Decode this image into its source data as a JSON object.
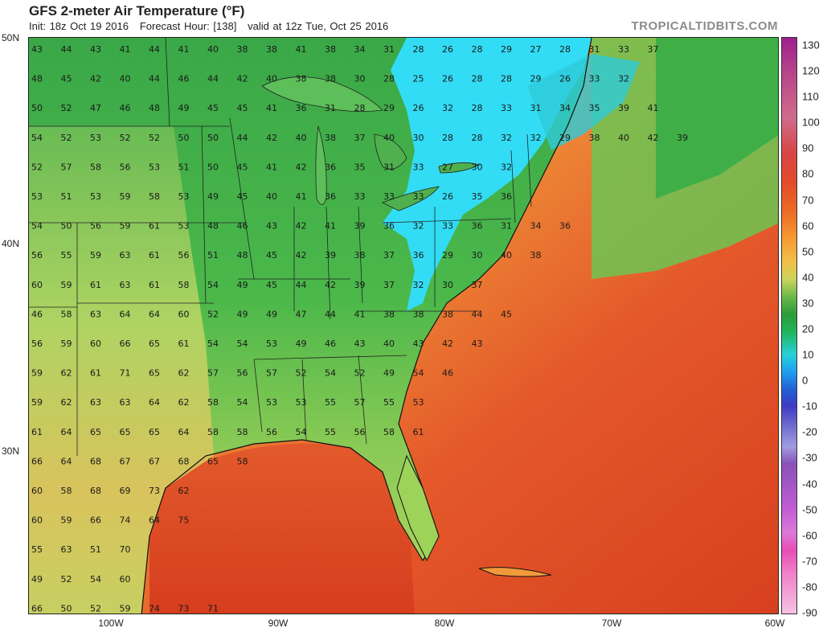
{
  "header": {
    "title": "GFS 2-meter Air Temperature (°F)",
    "init": "Init: 18z Oct 19 2016",
    "forecast_hour": "Forecast Hour: [138]",
    "valid": "valid at 12z Tue, Oct 25 2016",
    "brand": "TROPICALTIDBITS.COM"
  },
  "axes": {
    "lat_labels": [
      "50N",
      "40N",
      "30N"
    ],
    "lon_labels": [
      "100W",
      "90W",
      "80W",
      "70W",
      "60W"
    ]
  },
  "colorbar": {
    "labels": [
      "130",
      "120",
      "110",
      "100",
      "90",
      "80",
      "70",
      "60",
      "50",
      "40",
      "30",
      "20",
      "10",
      "0",
      "-10",
      "-20",
      "-30",
      "-40",
      "-50",
      "-60",
      "-70",
      "-80",
      "-90"
    ]
  },
  "colors": {
    "ocean_warm": "#d9431f",
    "ocean_mid": "#f0953a",
    "land_green": "#3fae46",
    "land_light": "#a8d35a",
    "cold_cyan": "#33dcf5"
  },
  "station_values": [
    [
      "43",
      "44",
      "43",
      "41",
      "44",
      "41",
      "40",
      "38",
      "38",
      "41",
      "38",
      "34",
      "31",
      "28",
      "26",
      "28",
      "29",
      "27",
      "28",
      "31",
      "33",
      "37"
    ],
    [
      "48",
      "45",
      "42",
      "40",
      "44",
      "46",
      "44",
      "42",
      "40",
      "38",
      "38",
      "30",
      "28",
      "25",
      "26",
      "28",
      "28",
      "29",
      "26",
      "33",
      "32"
    ],
    [
      "50",
      "52",
      "47",
      "46",
      "48",
      "49",
      "45",
      "45",
      "41",
      "36",
      "31",
      "28",
      "29",
      "26",
      "32",
      "28",
      "33",
      "31",
      "34",
      "35",
      "39",
      "41"
    ],
    [
      "54",
      "52",
      "53",
      "52",
      "52",
      "50",
      "50",
      "44",
      "42",
      "40",
      "38",
      "37",
      "40",
      "30",
      "28",
      "28",
      "32",
      "32",
      "29",
      "38",
      "40",
      "42",
      "39"
    ],
    [
      "52",
      "57",
      "58",
      "56",
      "53",
      "51",
      "50",
      "45",
      "41",
      "42",
      "36",
      "35",
      "31",
      "33",
      "27",
      "30",
      "32"
    ],
    [
      "53",
      "51",
      "53",
      "59",
      "58",
      "53",
      "49",
      "45",
      "40",
      "41",
      "36",
      "33",
      "33",
      "33",
      "26",
      "35",
      "36"
    ],
    [
      "54",
      "50",
      "56",
      "59",
      "61",
      "53",
      "48",
      "46",
      "43",
      "42",
      "41",
      "39",
      "36",
      "32",
      "33",
      "36",
      "31",
      "34",
      "36"
    ],
    [
      "56",
      "55",
      "59",
      "63",
      "61",
      "56",
      "51",
      "48",
      "45",
      "42",
      "39",
      "38",
      "37",
      "36",
      "29",
      "30",
      "40",
      "38"
    ],
    [
      "60",
      "59",
      "61",
      "63",
      "61",
      "58",
      "54",
      "49",
      "45",
      "44",
      "42",
      "39",
      "37",
      "32",
      "30",
      "37"
    ],
    [
      "46",
      "58",
      "63",
      "64",
      "64",
      "60",
      "52",
      "49",
      "49",
      "47",
      "44",
      "41",
      "38",
      "38",
      "38",
      "44",
      "45"
    ],
    [
      "56",
      "59",
      "60",
      "66",
      "65",
      "61",
      "54",
      "54",
      "53",
      "49",
      "46",
      "43",
      "40",
      "43",
      "42",
      "43"
    ],
    [
      "59",
      "62",
      "61",
      "71",
      "65",
      "62",
      "57",
      "56",
      "57",
      "52",
      "54",
      "52",
      "49",
      "54",
      "46"
    ],
    [
      "59",
      "62",
      "63",
      "63",
      "64",
      "62",
      "58",
      "54",
      "53",
      "53",
      "55",
      "57",
      "55",
      "53"
    ],
    [
      "61",
      "64",
      "65",
      "65",
      "65",
      "64",
      "58",
      "58",
      "56",
      "54",
      "55",
      "56",
      "58",
      "61"
    ],
    [
      "66",
      "64",
      "68",
      "67",
      "67",
      "68",
      "65",
      "58"
    ],
    [
      "60",
      "58",
      "68",
      "69",
      "73",
      "62"
    ],
    [
      "60",
      "59",
      "66",
      "74",
      "64",
      "75"
    ],
    [
      "55",
      "63",
      "51",
      "70"
    ],
    [
      "49",
      "52",
      "54",
      "60"
    ],
    [
      "66",
      "50",
      "52",
      "59",
      "74",
      "73",
      "71"
    ]
  ]
}
